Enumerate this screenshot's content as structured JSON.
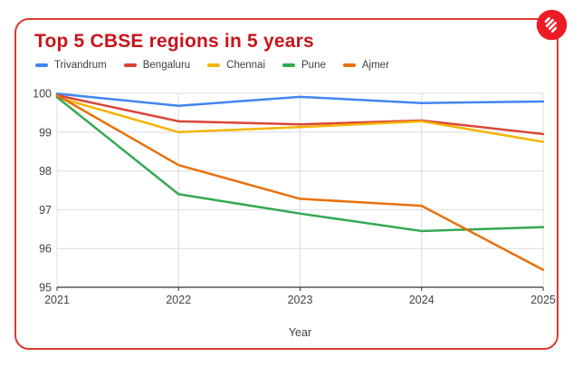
{
  "header": {
    "title": "Top 5 CBSE regions in 5 years",
    "logo_name": "indian-express-logo",
    "logo_color": "#ed1c24"
  },
  "colors": {
    "card_border": "#dc392f",
    "title_red": "#c8151b",
    "grid": "#dadce0",
    "axis_line": "#333333",
    "tick_text": "#424242"
  },
  "chart_data": {
    "type": "line",
    "title": "Top 5 CBSE regions in 5 years",
    "xlabel": "Year",
    "ylabel": "",
    "x": [
      2021,
      2022,
      2023,
      2024,
      2025
    ],
    "ylim": [
      95,
      100
    ],
    "yticks": [
      95,
      96,
      97,
      98,
      99,
      100
    ],
    "grid": true,
    "legend_position": "top",
    "series": [
      {
        "name": "Trivandrum",
        "color": "#4285F4",
        "values": [
          99.99,
          99.68,
          99.91,
          99.75,
          99.79
        ]
      },
      {
        "name": "Bengaluru",
        "color": "#DB4437",
        "values": [
          99.95,
          99.28,
          99.2,
          99.3,
          98.95
        ]
      },
      {
        "name": "Chennai",
        "color": "#F4B400",
        "values": [
          99.9,
          99.0,
          99.13,
          99.28,
          98.75
        ]
      },
      {
        "name": "Pune",
        "color": "#34A853",
        "values": [
          99.9,
          97.4,
          96.9,
          96.45,
          96.55
        ]
      },
      {
        "name": "Ajmer",
        "color": "#E8710A",
        "values": [
          99.95,
          98.15,
          97.28,
          97.1,
          95.45
        ]
      }
    ]
  }
}
